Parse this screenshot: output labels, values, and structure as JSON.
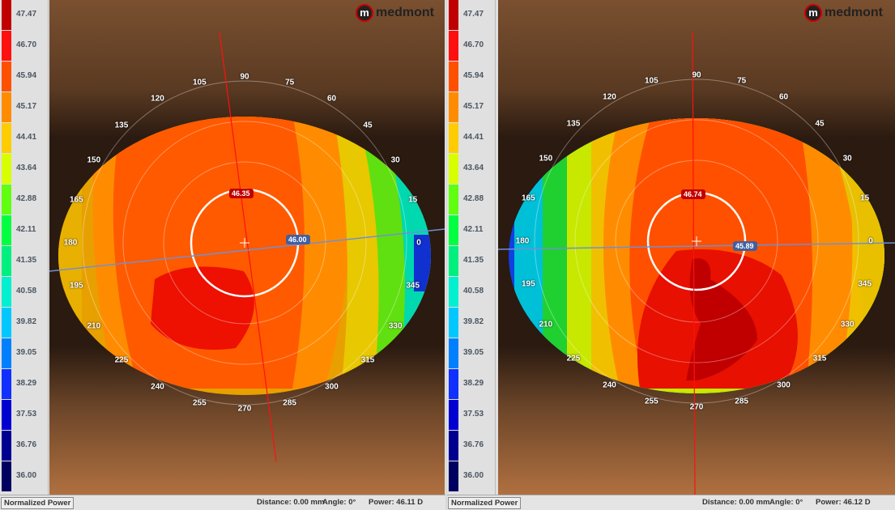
{
  "legend": {
    "values": [
      "47.47",
      "46.70",
      "45.94",
      "45.17",
      "44.41",
      "43.64",
      "42.88",
      "42.11",
      "41.35",
      "40.58",
      "39.82",
      "39.05",
      "38.29",
      "37.53",
      "36.76",
      "36.00"
    ],
    "colors": [
      "#c00000",
      "#ff1010",
      "#ff5000",
      "#ff8c00",
      "#ffcc00",
      "#d8ff00",
      "#60ff10",
      "#00ff40",
      "#00f080",
      "#00f0d0",
      "#00c8ff",
      "#0080ff",
      "#1030ff",
      "#0000d0",
      "#000090",
      "#000060"
    ]
  },
  "brand": {
    "logo_letter": "m",
    "name": "medmont"
  },
  "axis_labels": [
    "0",
    "15",
    "30",
    "45",
    "60",
    "75",
    "90",
    "105",
    "120",
    "135",
    "150",
    "165",
    "180",
    "195",
    "210",
    "225",
    "240",
    "255",
    "270",
    "285",
    "300",
    "315",
    "330",
    "345"
  ],
  "panels": [
    {
      "id": "left",
      "steep_meridian_value": "46.35",
      "flat_meridian_value": "46.00",
      "status": {
        "mode_button": "Normalized Power",
        "distance": "Distance: 0.00 mm",
        "angle": "Angle: 0°",
        "power": "Power: 46.11 D"
      }
    },
    {
      "id": "right",
      "steep_meridian_value": "46.74",
      "flat_meridian_value": "45.89",
      "status": {
        "mode_button": "Normalized Power",
        "distance": "Distance: 0.00 mm",
        "angle": "Angle: 0°",
        "power": "Power: 46.12 D"
      }
    }
  ]
}
